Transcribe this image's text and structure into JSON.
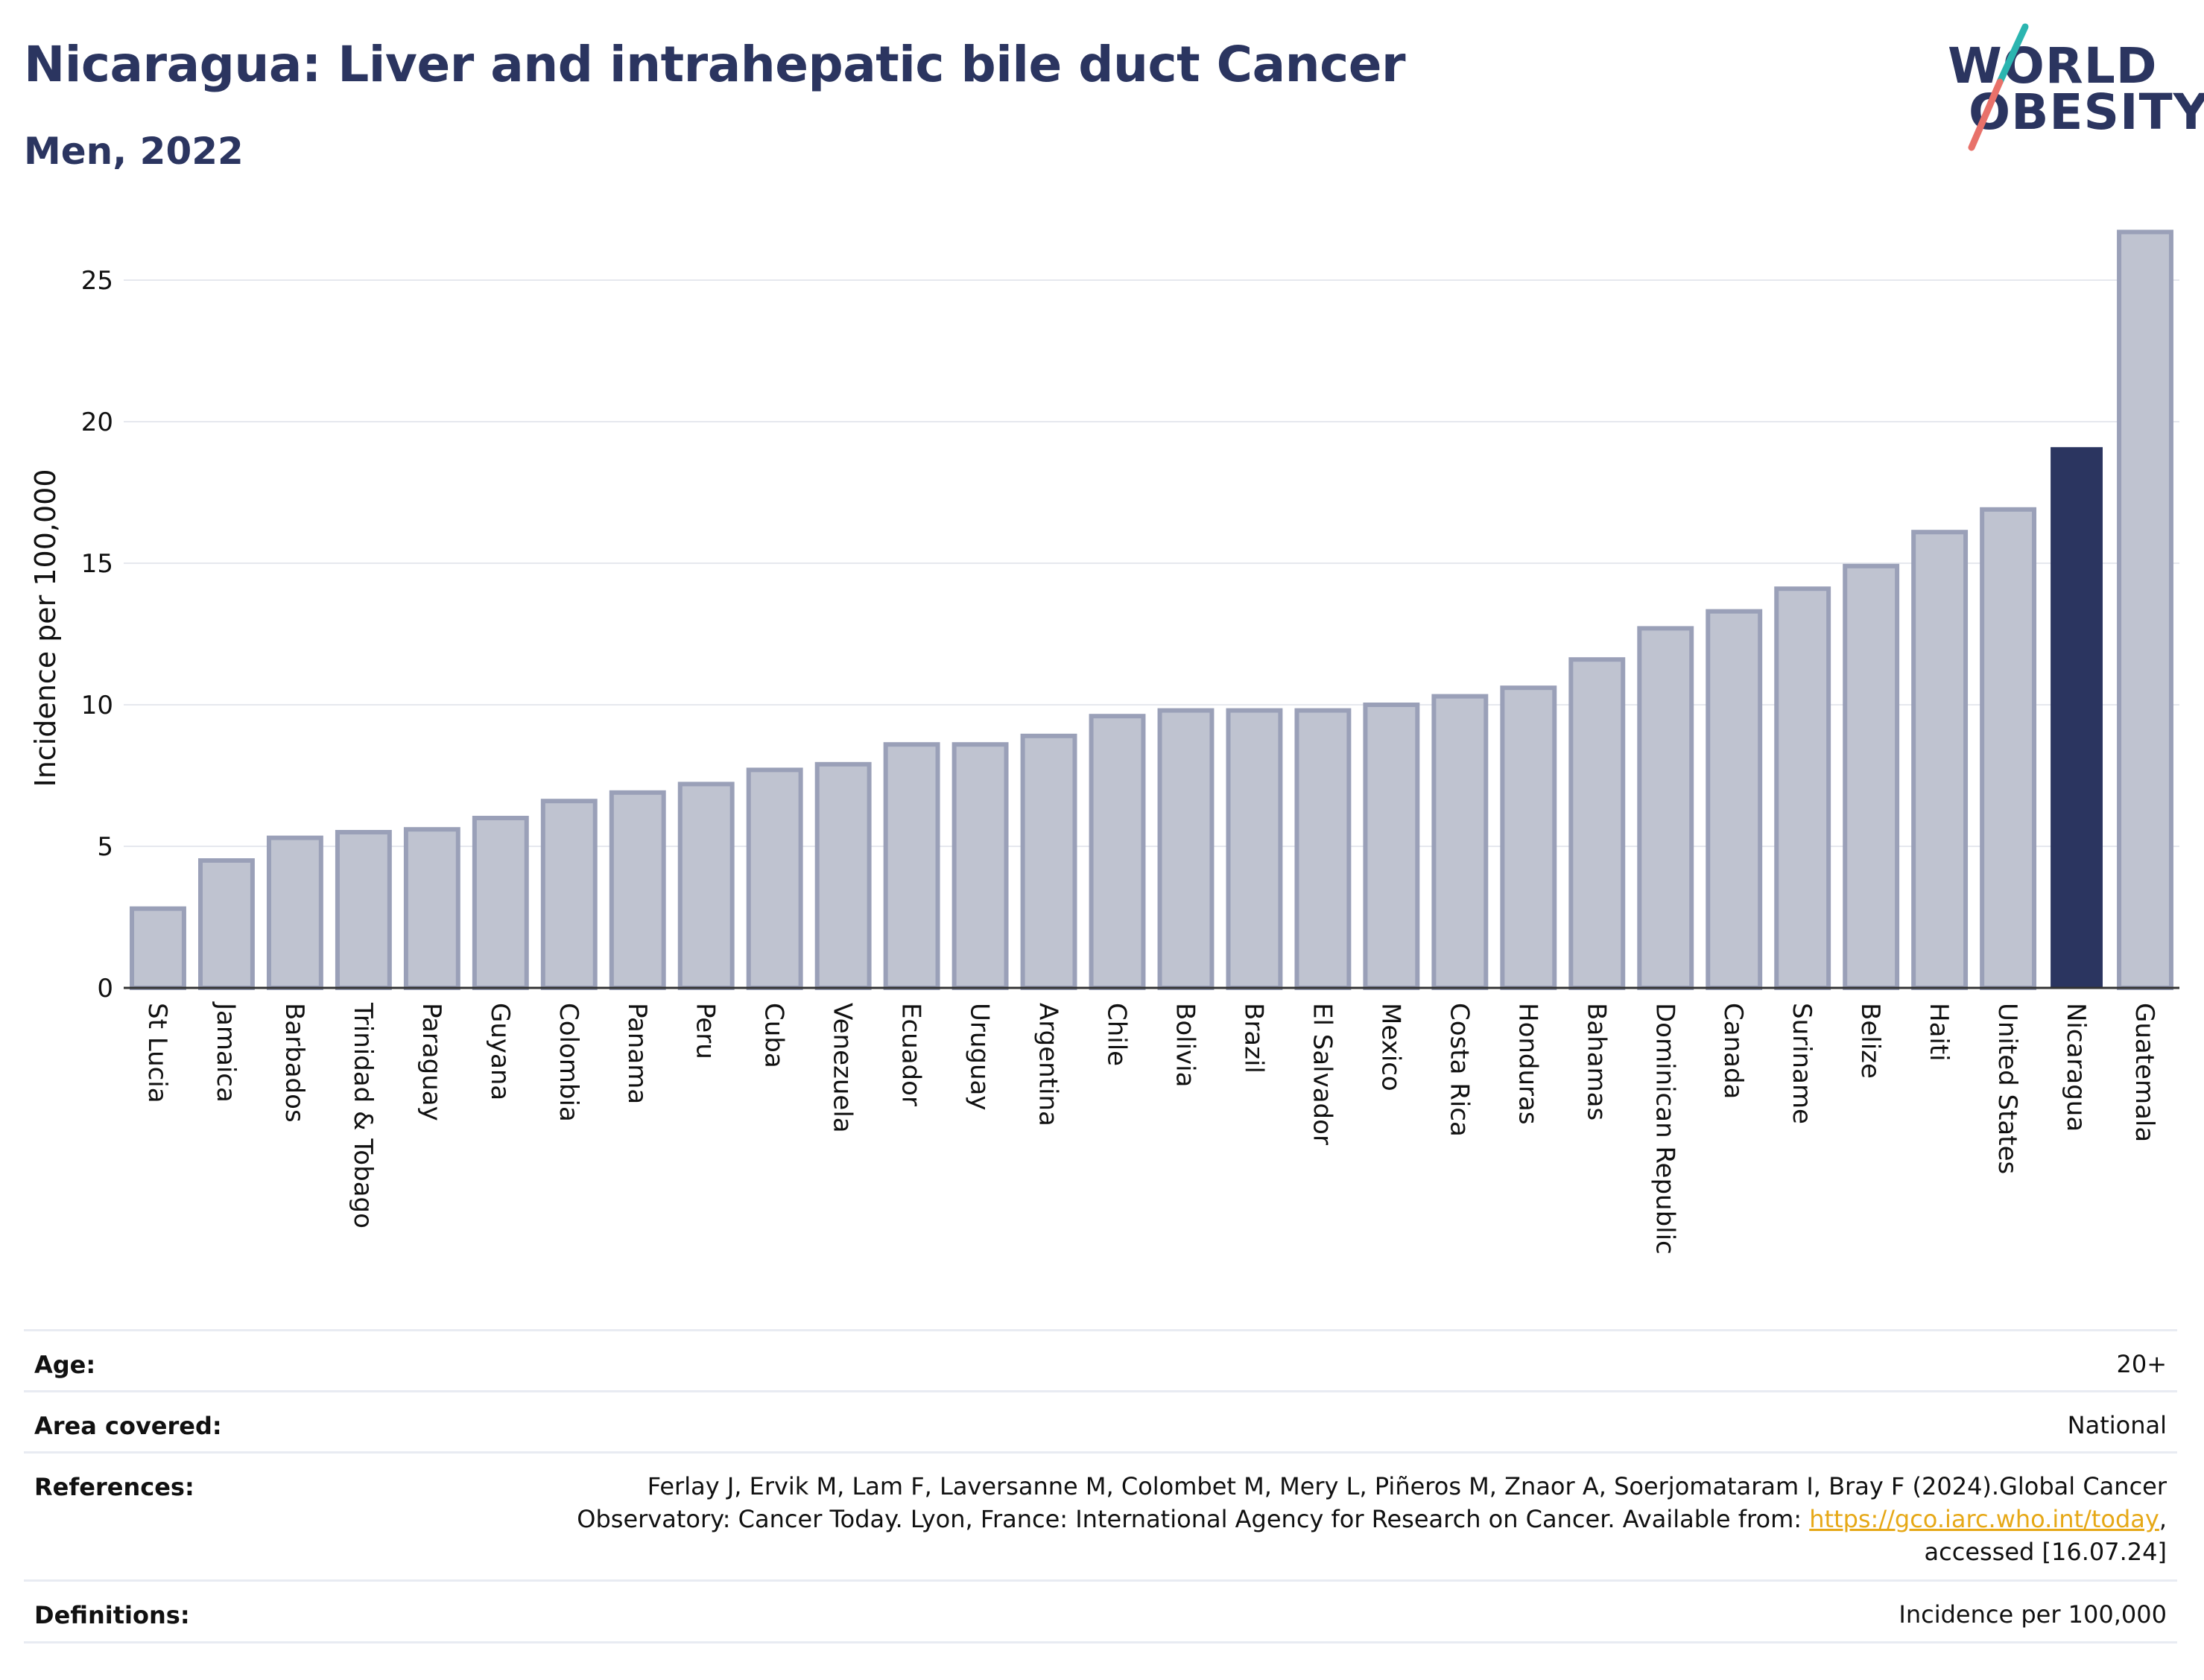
{
  "header": {
    "title": "Nicaragua: Liver and intrahepatic bile duct Cancer",
    "subtitle": "Men, 2022"
  },
  "logo": {
    "line1": "WORLD",
    "line2": "OBESITY",
    "slash_colors": [
      "#2bb5b0",
      "#e8716a"
    ]
  },
  "chart_data": {
    "type": "bar",
    "ylabel": "Incidence per 100,000",
    "ylim": [
      0,
      27
    ],
    "yticks": [
      0,
      5,
      10,
      15,
      20,
      25
    ],
    "grid": true,
    "highlight": "Nicaragua",
    "colors": {
      "default": "#bfc3d0",
      "default_border": "#9aa0b8",
      "highlight": "#2b3560"
    },
    "categories": [
      "St Lucia",
      "Jamaica",
      "Barbados",
      "Trinidad & Tobago",
      "Paraguay",
      "Guyana",
      "Colombia",
      "Panama",
      "Peru",
      "Cuba",
      "Venezuela",
      "Ecuador",
      "Uruguay",
      "Argentina",
      "Chile",
      "Bolivia",
      "Brazil",
      "El Salvador",
      "Mexico",
      "Costa Rica",
      "Honduras",
      "Bahamas",
      "Dominican Republic",
      "Canada",
      "Suriname",
      "Belize",
      "Haiti",
      "United States",
      "Nicaragua",
      "Guatemala"
    ],
    "values": [
      2.8,
      4.5,
      5.3,
      5.5,
      5.6,
      6.0,
      6.6,
      6.9,
      7.2,
      7.7,
      7.9,
      8.6,
      8.6,
      8.9,
      9.6,
      9.8,
      9.8,
      9.8,
      10.0,
      10.3,
      10.6,
      11.6,
      12.7,
      13.3,
      14.1,
      14.9,
      16.1,
      16.9,
      19.1,
      26.7
    ]
  },
  "meta": {
    "age": {
      "label": "Age:",
      "value": "20+"
    },
    "area": {
      "label": "Area covered:",
      "value": "National"
    },
    "references": {
      "label": "References:",
      "line1": "Ferlay J, Ervik M, Lam F, Laversanne M, Colombet M, Mery L, Piñeros M, Znaor A, Soerjomataram I, Bray F (2024).Global Cancer",
      "line2_prefix": "Observatory: Cancer Today. Lyon, France: International Agency for Research on Cancer. Available from: ",
      "link": "https://gco.iarc.who.int/today",
      "line2_suffix": ",",
      "line3": "accessed [16.07.24]"
    },
    "definitions": {
      "label": "Definitions:",
      "value": "Incidence per 100,000"
    }
  }
}
